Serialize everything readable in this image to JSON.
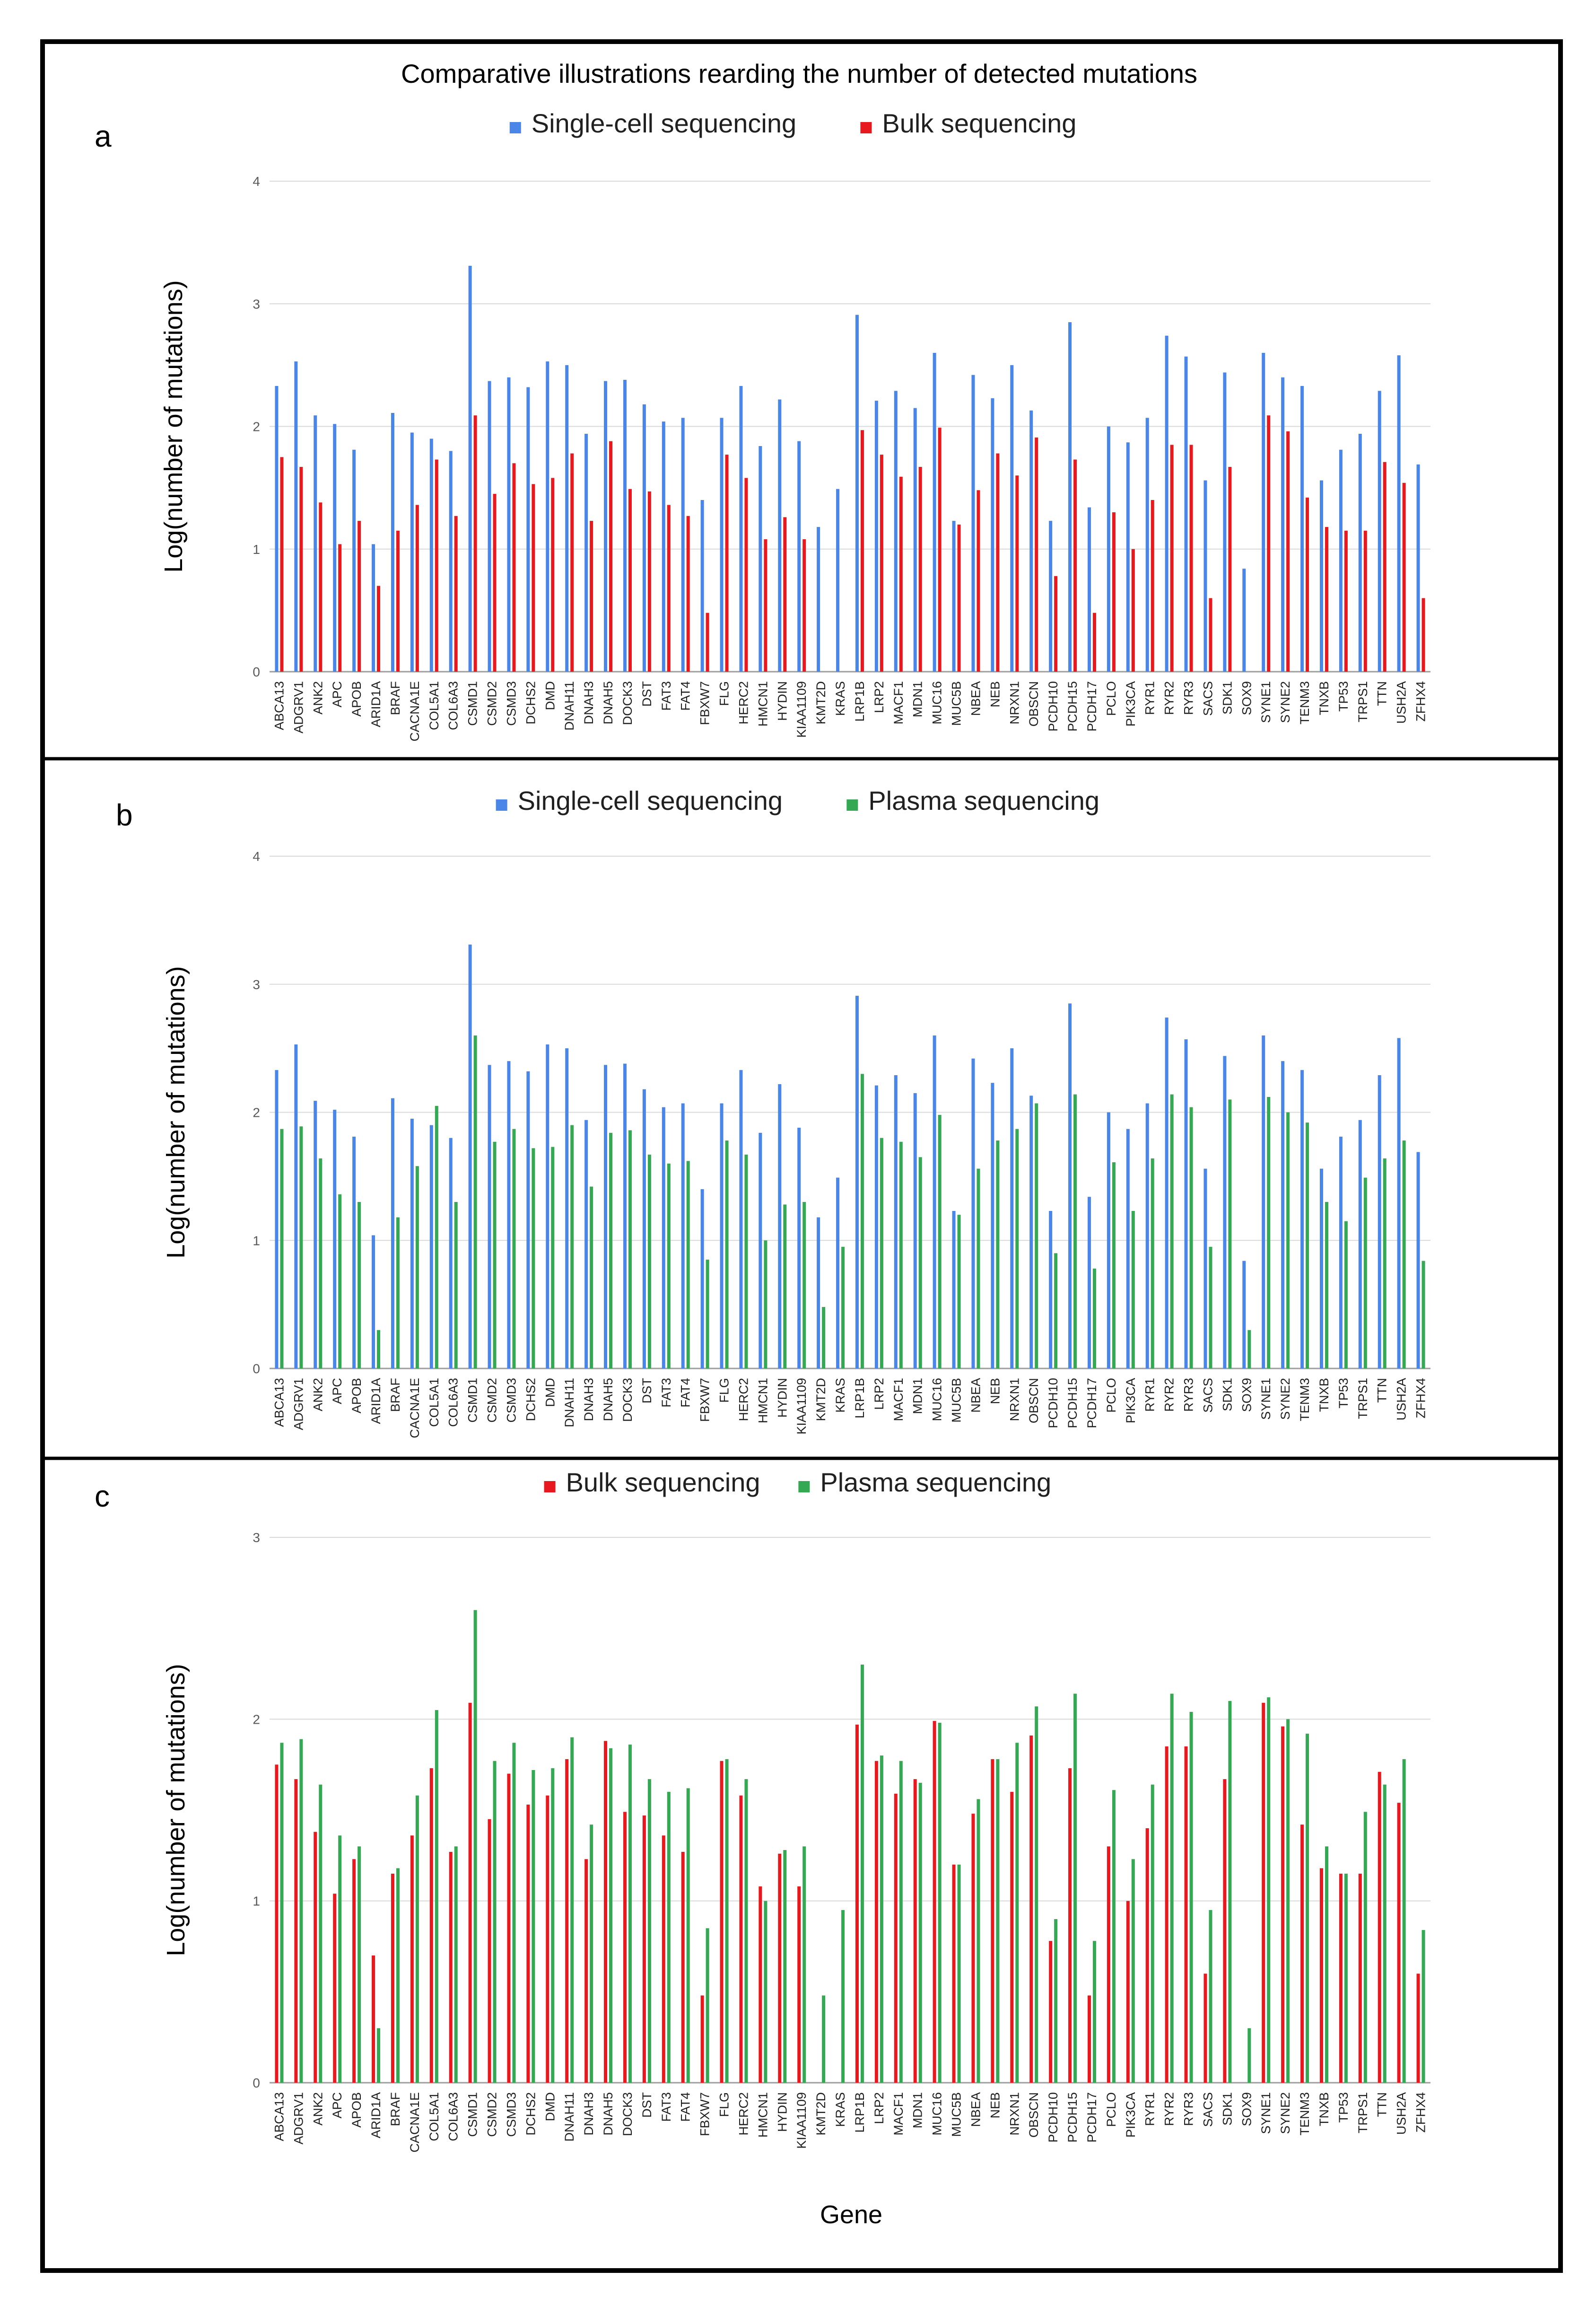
{
  "figure": {
    "title": "Comparative illustrations rearding the number of detected mutations",
    "x_axis_label": "Gene"
  },
  "colors": {
    "single_cell": "#4a86e8",
    "bulk": "#e8191e",
    "plasma": "#34a853",
    "gridline": "#d9d9d9",
    "frame": "#000000",
    "tick_text": "#595959"
  },
  "genes": [
    "ABCA13",
    "ADGRV1",
    "ANK2",
    "APC",
    "APOB",
    "ARID1A",
    "BRAF",
    "CACNA1E",
    "COL5A1",
    "COL6A3",
    "CSMD1",
    "CSMD2",
    "CSMD3",
    "DCHS2",
    "DMD",
    "DNAH11",
    "DNAH3",
    "DNAH5",
    "DOCK3",
    "DST",
    "FAT3",
    "FAT4",
    "FBXW7",
    "FLG",
    "HERC2",
    "HMCN1",
    "HYDIN",
    "KIAA1109",
    "KMT2D",
    "KRAS",
    "LRP1B",
    "LRP2",
    "MACF1",
    "MDN1",
    "MUC16",
    "MUC5B",
    "NBEA",
    "NEB",
    "NRXN1",
    "OBSCN",
    "PCDH10",
    "PCDH15",
    "PCDH17",
    "PCLO",
    "PIK3CA",
    "RYR1",
    "RYR2",
    "RYR3",
    "SACS",
    "SDK1",
    "SOX9",
    "SYNE1",
    "SYNE2",
    "TENM3",
    "TNXB",
    "TP53",
    "TRPS1",
    "TTN",
    "USH2A",
    "ZFHX4"
  ],
  "panels": [
    {
      "letter": "a",
      "ylabel": "Log(number of mutations)",
      "ymax": 4,
      "yticks": [
        "0",
        "1",
        "2",
        "3",
        "4"
      ],
      "legend": [
        "Single-cell sequencing",
        "Bulk sequencing"
      ]
    },
    {
      "letter": "b",
      "ylabel": "Log(number of mutations)",
      "ymax": 4,
      "yticks": [
        "0",
        "1",
        "2",
        "3",
        "4"
      ],
      "legend": [
        "Single-cell sequencing",
        "Plasma sequencing"
      ]
    },
    {
      "letter": "c",
      "ylabel": "Log(number of mutations)",
      "ymax": 3,
      "yticks": [
        "0",
        "1",
        "2",
        "3"
      ],
      "legend": [
        "Bulk sequencing",
        "Plasma sequencing"
      ]
    }
  ],
  "chart_data": [
    {
      "type": "bar",
      "panel": "a",
      "title": "Comparative illustrations rearding the number of detected mutations",
      "ylabel": "Log(number of mutations)",
      "ylim": [
        0,
        4
      ],
      "grid": true,
      "legend_position": "top-center",
      "series": [
        {
          "name": "Single-cell sequencing",
          "values": [
            2.33,
            2.53,
            2.09,
            2.02,
            1.81,
            1.04,
            2.11,
            1.95,
            1.9,
            1.8,
            3.31,
            2.37,
            2.4,
            2.32,
            2.53,
            2.5,
            1.94,
            2.37,
            2.38,
            2.18,
            2.04,
            2.07,
            1.4,
            2.07,
            2.33,
            1.84,
            2.22,
            1.88,
            1.18,
            1.49,
            2.91,
            2.21,
            2.29,
            2.15,
            2.6,
            1.23,
            2.42,
            2.23,
            2.5,
            2.13,
            1.23,
            2.85,
            1.34,
            2.0,
            1.87,
            2.07,
            2.74,
            2.57,
            1.56,
            2.44,
            0.84,
            2.6,
            2.4,
            2.33,
            1.56,
            1.81,
            1.94,
            2.29,
            2.58,
            1.69
          ]
        },
        {
          "name": "Bulk sequencing",
          "values": [
            1.75,
            1.67,
            1.38,
            1.04,
            1.23,
            0.7,
            1.15,
            1.36,
            1.73,
            1.27,
            2.09,
            1.45,
            1.7,
            1.53,
            1.58,
            1.78,
            1.23,
            1.88,
            1.49,
            1.47,
            1.36,
            1.27,
            0.48,
            1.77,
            1.58,
            1.08,
            1.26,
            1.08,
            0,
            0,
            1.97,
            1.77,
            1.59,
            1.67,
            1.99,
            1.2,
            1.48,
            1.78,
            1.6,
            1.91,
            0.78,
            1.73,
            0.48,
            1.3,
            1.0,
            1.4,
            1.85,
            1.85,
            0.6,
            1.67,
            0,
            2.09,
            1.96,
            1.42,
            1.18,
            1.15,
            1.15,
            1.71,
            1.54,
            0.6
          ]
        }
      ]
    },
    {
      "type": "bar",
      "panel": "b",
      "ylabel": "Log(number of mutations)",
      "ylim": [
        0,
        4
      ],
      "grid": true,
      "legend_position": "top-center",
      "series": [
        {
          "name": "Single-cell sequencing",
          "values": [
            2.33,
            2.53,
            2.09,
            2.02,
            1.81,
            1.04,
            2.11,
            1.95,
            1.9,
            1.8,
            3.31,
            2.37,
            2.4,
            2.32,
            2.53,
            2.5,
            1.94,
            2.37,
            2.38,
            2.18,
            2.04,
            2.07,
            1.4,
            2.07,
            2.33,
            1.84,
            2.22,
            1.88,
            1.18,
            1.49,
            2.91,
            2.21,
            2.29,
            2.15,
            2.6,
            1.23,
            2.42,
            2.23,
            2.5,
            2.13,
            1.23,
            2.85,
            1.34,
            2.0,
            1.87,
            2.07,
            2.74,
            2.57,
            1.56,
            2.44,
            0.84,
            2.6,
            2.4,
            2.33,
            1.56,
            1.81,
            1.94,
            2.29,
            2.58,
            1.69
          ]
        },
        {
          "name": "Plasma sequencing",
          "values": [
            1.87,
            1.89,
            1.64,
            1.36,
            1.3,
            0.3,
            1.18,
            1.58,
            2.05,
            1.3,
            2.6,
            1.77,
            1.87,
            1.72,
            1.73,
            1.9,
            1.42,
            1.84,
            1.86,
            1.67,
            1.6,
            1.62,
            0.85,
            1.78,
            1.67,
            1.0,
            1.28,
            1.3,
            0.48,
            0.95,
            2.3,
            1.8,
            1.77,
            1.65,
            1.98,
            1.2,
            1.56,
            1.78,
            1.87,
            2.07,
            0.9,
            2.14,
            0.78,
            1.61,
            1.23,
            1.64,
            2.14,
            2.04,
            0.95,
            2.1,
            0.3,
            2.12,
            2.0,
            1.92,
            1.3,
            1.15,
            1.49,
            1.64,
            1.78,
            0.84
          ]
        }
      ]
    },
    {
      "type": "bar",
      "panel": "c",
      "xlabel": "Gene",
      "ylabel": "Log(number of mutations)",
      "ylim": [
        0,
        3
      ],
      "grid": true,
      "legend_position": "top-center",
      "series": [
        {
          "name": "Bulk sequencing",
          "values": [
            1.75,
            1.67,
            1.38,
            1.04,
            1.23,
            0.7,
            1.15,
            1.36,
            1.73,
            1.27,
            2.09,
            1.45,
            1.7,
            1.53,
            1.58,
            1.78,
            1.23,
            1.88,
            1.49,
            1.47,
            1.36,
            1.27,
            0.48,
            1.77,
            1.58,
            1.08,
            1.26,
            1.08,
            0,
            0,
            1.97,
            1.77,
            1.59,
            1.67,
            1.99,
            1.2,
            1.48,
            1.78,
            1.6,
            1.91,
            0.78,
            1.73,
            0.48,
            1.3,
            1.0,
            1.4,
            1.85,
            1.85,
            0.6,
            1.67,
            0,
            2.09,
            1.96,
            1.42,
            1.18,
            1.15,
            1.15,
            1.71,
            1.54,
            0.6
          ]
        },
        {
          "name": "Plasma sequencing",
          "values": [
            1.87,
            1.89,
            1.64,
            1.36,
            1.3,
            0.3,
            1.18,
            1.58,
            2.05,
            1.3,
            2.6,
            1.77,
            1.87,
            1.72,
            1.73,
            1.9,
            1.42,
            1.84,
            1.86,
            1.67,
            1.6,
            1.62,
            0.85,
            1.78,
            1.67,
            1.0,
            1.28,
            1.3,
            0.48,
            0.95,
            2.3,
            1.8,
            1.77,
            1.65,
            1.98,
            1.2,
            1.56,
            1.78,
            1.87,
            2.07,
            0.9,
            2.14,
            0.78,
            1.61,
            1.23,
            1.64,
            2.14,
            2.04,
            0.95,
            2.1,
            0.3,
            2.12,
            2.0,
            1.92,
            1.3,
            1.15,
            1.49,
            1.64,
            1.78,
            0.84
          ]
        }
      ]
    }
  ]
}
